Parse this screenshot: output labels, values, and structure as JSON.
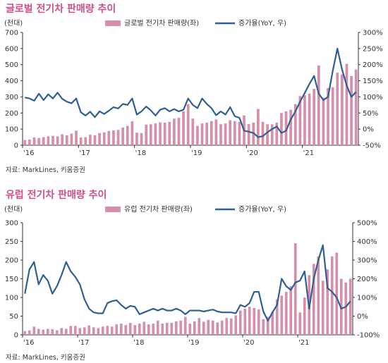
{
  "colors": {
    "title": "#d0508a",
    "bar": "#d68faa",
    "line": "#2f5f95",
    "axis": "#333333"
  },
  "chart_data": [
    {
      "type": "bar",
      "title": "글로벌 전기차 판매량 추이",
      "unit_left": "(천대)",
      "legend": [
        {
          "label": "글로벌 전기차 판매량(좌)",
          "kind": "bar"
        },
        {
          "label": "증가율(YoY, 우)",
          "kind": "line"
        }
      ],
      "source": "자료: MarkLines, 키움증권",
      "legend_placement": "top-right",
      "grid": false,
      "left_axis": {
        "ylim": [
          0,
          700
        ],
        "ticks": [
          0,
          100,
          200,
          300,
          400,
          500,
          600,
          700
        ],
        "labels": [
          "0",
          "100",
          "200",
          "300",
          "400",
          "500",
          "600",
          "700"
        ]
      },
      "right_axis": {
        "ylim": [
          -50,
          300
        ],
        "ticks": [
          -50,
          0,
          50,
          100,
          150,
          200,
          250,
          300
        ],
        "labels": [
          "-50%",
          "0%",
          "50%",
          "100%",
          "150%",
          "200%",
          "250%",
          "300%"
        ]
      },
      "x_labels": [
        {
          "index": 0,
          "label": "'16"
        },
        {
          "index": 12,
          "label": "'17"
        },
        {
          "index": 24,
          "label": "'18"
        },
        {
          "index": 36,
          "label": "'19"
        },
        {
          "index": 48,
          "label": "'20"
        },
        {
          "index": 60,
          "label": "'21"
        }
      ],
      "series": [
        {
          "name": "글로벌 전기차 판매량(좌)",
          "axis": "left",
          "type": "bar",
          "values": [
            32,
            35,
            48,
            45,
            50,
            55,
            58,
            55,
            68,
            62,
            72,
            90,
            48,
            50,
            65,
            62,
            75,
            80,
            88,
            92,
            95,
            110,
            120,
            148,
            78,
            75,
            128,
            130,
            135,
            142,
            140,
            145,
            165,
            170,
            210,
            255,
            165,
            120,
            135,
            140,
            150,
            160,
            130,
            135,
            155,
            150,
            145,
            185,
            132,
            140,
            225,
            145,
            130,
            130,
            140,
            200,
            210,
            220,
            255,
            305,
            310,
            320,
            350,
            495,
            295,
            355,
            360,
            450,
            440,
            505,
            430,
            470
          ]
        },
        {
          "name": "증가율(YoY, 우)",
          "axis": "right",
          "type": "line",
          "values": [
            98,
            95,
            88,
            110,
            90,
            108,
            95,
            113,
            94,
            85,
            80,
            95,
            52,
            42,
            54,
            37,
            55,
            47,
            57,
            68,
            64,
            78,
            75,
            95,
            45,
            55,
            70,
            58,
            42,
            60,
            65,
            55,
            62,
            55,
            60,
            95,
            75,
            65,
            95,
            78,
            65,
            43,
            55,
            45,
            68,
            40,
            35,
            -5,
            -8,
            -12,
            -25,
            -22,
            -10,
            0,
            8,
            -12,
            -5,
            30,
            55,
            85,
            112,
            140,
            165,
            110,
            90,
            100,
            180,
            250,
            185,
            135,
            100,
            115
          ]
        }
      ]
    },
    {
      "type": "bar",
      "title": "유럽 전기차 판매량 추이",
      "unit_left": "(천대)",
      "legend": [
        {
          "label": "유럽 전기차 판매량(좌)",
          "kind": "bar"
        },
        {
          "label": "증가율(YoY, 우)",
          "kind": "line"
        }
      ],
      "source": "자료: MarkLines, 키움증권",
      "legend_placement": "top-right",
      "grid": false,
      "left_axis": {
        "ylim": [
          0,
          300
        ],
        "ticks": [
          0,
          50,
          100,
          150,
          200,
          250,
          300
        ],
        "labels": [
          "0",
          "50",
          "100",
          "150",
          "200",
          "250",
          "300"
        ]
      },
      "right_axis": {
        "ylim": [
          -100,
          500
        ],
        "ticks": [
          -100,
          0,
          100,
          200,
          300,
          400,
          500
        ],
        "labels": [
          "-100%",
          "0%",
          "100%",
          "200%",
          "300%",
          "400%",
          "500%"
        ]
      },
      "x_labels": [
        {
          "index": 0,
          "label": "'16"
        },
        {
          "index": 12,
          "label": "'17"
        },
        {
          "index": 24,
          "label": "'18"
        },
        {
          "index": 36,
          "label": "'19"
        },
        {
          "index": 48,
          "label": "'20"
        },
        {
          "index": 60,
          "label": "'21"
        }
      ],
      "series": [
        {
          "name": "유럽 전기차 판매량(좌)",
          "axis": "left",
          "type": "bar",
          "values": [
            10,
            12,
            22,
            16,
            14,
            16,
            15,
            12,
            18,
            16,
            24,
            24,
            18,
            20,
            25,
            20,
            18,
            22,
            24,
            22,
            28,
            30,
            26,
            32,
            26,
            30,
            35,
            28,
            30,
            38,
            30,
            32,
            32,
            36,
            38,
            48,
            30,
            36,
            45,
            35,
            40,
            38,
            33,
            38,
            45,
            44,
            52,
            65,
            70,
            75,
            72,
            68,
            42,
            48,
            62,
            95,
            105,
            115,
            130,
            245,
            60,
            100,
            160,
            190,
            210,
            145,
            175,
            210,
            220,
            150,
            140,
            150
          ]
        },
        {
          "name": "증가율(YoY, 우)",
          "axis": "right",
          "type": "line",
          "values": [
            120,
            250,
            290,
            170,
            220,
            190,
            120,
            160,
            220,
            290,
            240,
            210,
            170,
            90,
            40,
            20,
            15,
            15,
            70,
            80,
            85,
            60,
            40,
            55,
            50,
            10,
            20,
            30,
            40,
            30,
            40,
            30,
            30,
            40,
            30,
            10,
            30,
            30,
            30,
            25,
            30,
            35,
            25,
            20,
            20,
            20,
            15,
            60,
            50,
            70,
            130,
            130,
            25,
            -25,
            20,
            60,
            200,
            160,
            140,
            180,
            190,
            240,
            40,
            200,
            300,
            380,
            150,
            130,
            100,
            40,
            50,
            80
          ]
        }
      ]
    }
  ]
}
